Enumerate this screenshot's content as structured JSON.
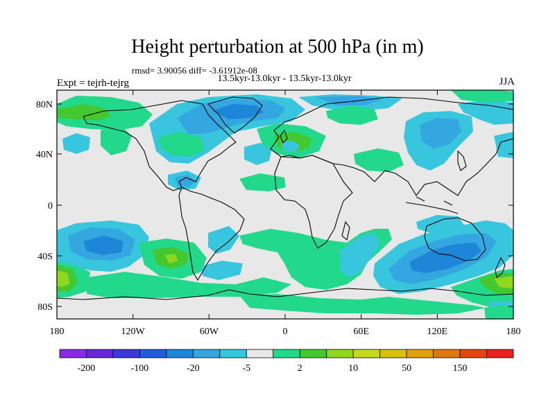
{
  "title": "Height perturbation at 500 hPa (in m)",
  "stats": "rmsd= 3.90056 diff= -3.61912e-08",
  "subtitle": "13.5kyr-13.0kyr - 13.5kyr-13.0kyr",
  "experiment": "Expt = tejrh-tejrg",
  "season": "JJA",
  "lat_labels": [
    "80N",
    "40N",
    "0",
    "40S",
    "80S"
  ],
  "lon_labels": [
    "180",
    "120W",
    "60W",
    "0",
    "60E",
    "120E",
    "180"
  ],
  "colorbar": {
    "colors": [
      "#8a2be2",
      "#6a27d6",
      "#3a3ad6",
      "#1d5fd8",
      "#1e86d8",
      "#34a6e0",
      "#38c6de",
      "#e8e8e8",
      "#22d88a",
      "#44c830",
      "#90d820",
      "#c8d820",
      "#d8c010",
      "#e0a010",
      "#e07810",
      "#e04810",
      "#e82020"
    ],
    "labels": [
      "-200",
      "-100",
      "-20",
      "-5",
      "2",
      "10",
      "50",
      "150"
    ]
  },
  "map_colors": {
    "background": "#e8e8e8",
    "pos_light": "#22d88a",
    "pos_mid": "#44c830",
    "pos_high": "#90d820",
    "pos_strong": "#c8d820",
    "neg_light": "#38c6de",
    "neg_mid": "#34a6e0",
    "neg_strong": "#1e86d8"
  }
}
